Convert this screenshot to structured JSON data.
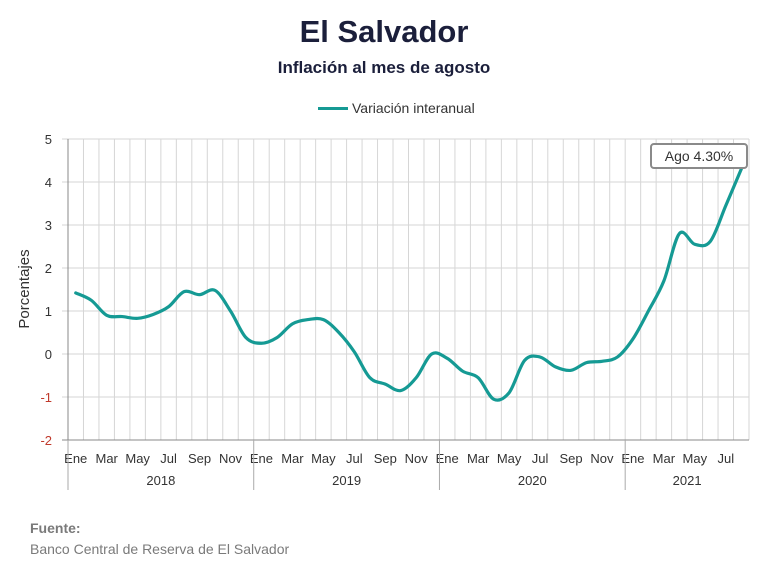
{
  "chart_data": {
    "type": "line",
    "title": "El Salvador",
    "subtitle": "Inflación al mes de agosto",
    "ylabel": "Porcentajes",
    "xlabel": "",
    "ylim": [
      -2,
      5
    ],
    "yticks": [
      5,
      4,
      3,
      2,
      1,
      0,
      -1,
      -2
    ],
    "grid": true,
    "legend": "top-center",
    "month_labels": [
      "Ene",
      "Mar",
      "May",
      "Jul",
      "Sep",
      "Nov",
      "Ene",
      "Mar",
      "May",
      "Jul",
      "Sep",
      "Nov",
      "Ene",
      "Mar",
      "May",
      "Jul",
      "Sep",
      "Nov",
      "Ene",
      "Mar",
      "May",
      "Jul"
    ],
    "years": [
      "2018",
      "2019",
      "2020",
      "2021"
    ],
    "series": [
      {
        "name": "Variación interanual",
        "color": "#159a94",
        "x": [
          "2018-01",
          "2018-02",
          "2018-03",
          "2018-04",
          "2018-05",
          "2018-06",
          "2018-07",
          "2018-08",
          "2018-09",
          "2018-10",
          "2018-11",
          "2018-12",
          "2019-01",
          "2019-02",
          "2019-03",
          "2019-04",
          "2019-05",
          "2019-06",
          "2019-07",
          "2019-08",
          "2019-09",
          "2019-10",
          "2019-11",
          "2019-12",
          "2020-01",
          "2020-02",
          "2020-03",
          "2020-04",
          "2020-05",
          "2020-06",
          "2020-07",
          "2020-08",
          "2020-09",
          "2020-10",
          "2020-11",
          "2020-12",
          "2021-01",
          "2021-02",
          "2021-03",
          "2021-04",
          "2021-05",
          "2021-06",
          "2021-07",
          "2021-08"
        ],
        "values": [
          1.42,
          1.25,
          0.9,
          0.87,
          0.83,
          0.92,
          1.1,
          1.45,
          1.38,
          1.48,
          1.0,
          0.38,
          0.25,
          0.38,
          0.7,
          0.8,
          0.8,
          0.5,
          0.05,
          -0.55,
          -0.7,
          -0.85,
          -0.55,
          0.0,
          -0.1,
          -0.4,
          -0.55,
          -1.05,
          -0.9,
          -0.15,
          -0.07,
          -0.3,
          -0.38,
          -0.2,
          -0.17,
          -0.07,
          0.35,
          1.0,
          1.7,
          2.8,
          2.55,
          2.62,
          3.45,
          4.3
        ]
      }
    ],
    "annotation": {
      "text": "Ago 4.30%"
    }
  },
  "source": {
    "label": "Fuente:",
    "text": "Banco Central de Reserva de El Salvador"
  }
}
